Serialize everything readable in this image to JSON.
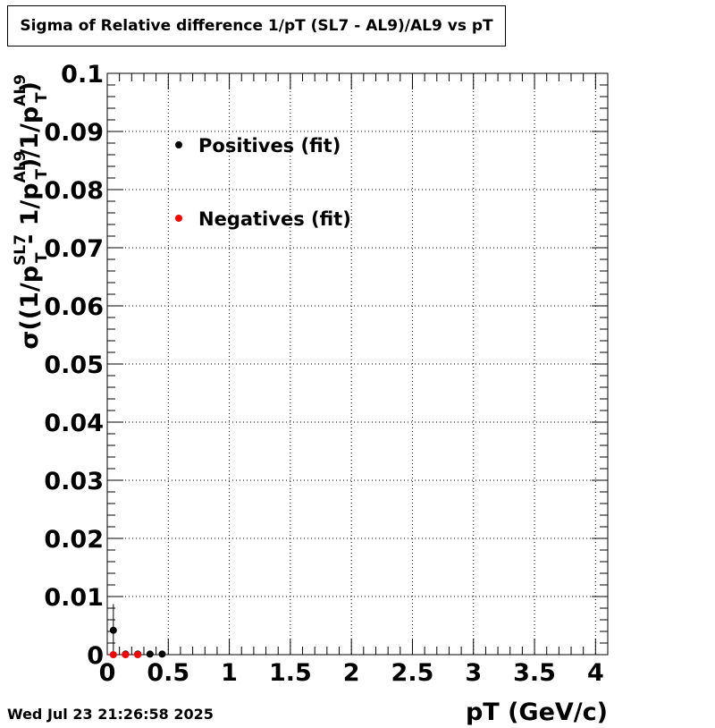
{
  "title": "Sigma of Relative difference 1/pT (SL7 - AL9)/AL9 vs pT",
  "timestamp": "Wed Jul 23 21:26:58 2025",
  "chart_data": {
    "type": "scatter",
    "title": "Sigma of Relative difference 1/pT (SL7 - AL9)/AL9 vs pT",
    "xlabel": "pT (GeV/c)",
    "ylabel_parts": {
      "sigma": "σ",
      "open": "((1/p",
      "sup1": "SL7",
      "sub1": "T",
      "mid": " - 1/p",
      "sup2": "AL9",
      "sub2": "T",
      "mid2": ")/1/p",
      "sup3": "AL9",
      "sub3": "T",
      "close": ")"
    },
    "xlim": [
      0,
      4.1
    ],
    "ylim": [
      0,
      0.1
    ],
    "x_ticks": [
      0,
      0.5,
      1,
      1.5,
      2,
      2.5,
      3,
      3.5,
      4
    ],
    "x_tick_labels": [
      "0",
      "0.5",
      "1",
      "1.5",
      "2",
      "2.5",
      "3",
      "3.5",
      "4"
    ],
    "y_ticks": [
      0,
      0.01,
      0.02,
      0.03,
      0.04,
      0.05,
      0.06,
      0.07,
      0.08,
      0.09,
      0.1
    ],
    "y_tick_labels": [
      "0",
      "0.01",
      "0.02",
      "0.03",
      "0.04",
      "0.05",
      "0.06",
      "0.07",
      "0.08",
      "0.09",
      "0.1"
    ],
    "grid": true,
    "legend_position": "top-left",
    "series": [
      {
        "name": "Positives (fit)",
        "color": "#000000",
        "x": [
          0.05,
          0.15,
          0.25,
          0.35,
          0.45
        ],
        "y": [
          0.0042,
          0.0001,
          0.0001,
          0.0001,
          0.0001
        ],
        "yerr": [
          0.0045,
          0,
          0,
          0,
          0
        ]
      },
      {
        "name": "Negatives (fit)",
        "color": "#ff0000",
        "x": [
          0.05,
          0.15,
          0.25
        ],
        "y": [
          0.0,
          0.0,
          0.0
        ],
        "yerr": [
          0.0,
          0,
          0
        ]
      }
    ]
  }
}
